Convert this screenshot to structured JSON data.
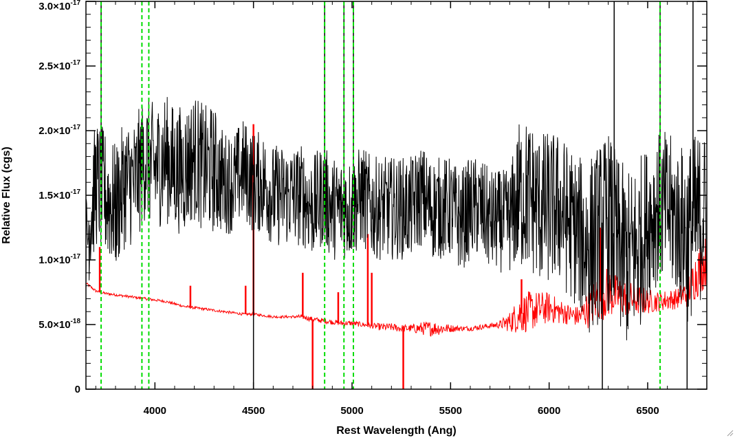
{
  "chart_data": {
    "type": "line",
    "title": "",
    "xlabel": "Rest Wavelength (Ang)",
    "ylabel": "Relative Flux (cgs)",
    "xlim": [
      3650,
      6800
    ],
    "ylim": [
      0,
      3e-17
    ],
    "x_ticks": [
      {
        "value": 4000,
        "label": "4000"
      },
      {
        "value": 4500,
        "label": "4500"
      },
      {
        "value": 5000,
        "label": "5000"
      },
      {
        "value": 5500,
        "label": "5500"
      },
      {
        "value": 6000,
        "label": "6000"
      },
      {
        "value": 6500,
        "label": "6500"
      }
    ],
    "y_ticks": [
      {
        "value": 0,
        "mantissa": "0",
        "exponent": ""
      },
      {
        "value": 5e-18,
        "mantissa": "5.0×10",
        "exponent": "-18"
      },
      {
        "value": 1e-17,
        "mantissa": "1.0×10",
        "exponent": "-17"
      },
      {
        "value": 1.5e-17,
        "mantissa": "1.5×10",
        "exponent": "-17"
      },
      {
        "value": 2e-17,
        "mantissa": "2.0×10",
        "exponent": "-17"
      },
      {
        "value": 2.5e-17,
        "mantissa": "2.5×10",
        "exponent": "-17"
      },
      {
        "value": 3e-17,
        "mantissa": "3.0×10",
        "exponent": "-17"
      }
    ],
    "grid": false,
    "line_markers": [
      3727,
      3934,
      3969,
      4861,
      4959,
      5007,
      6563
    ],
    "series": [
      {
        "color": "#000000",
        "x": [
          3650,
          3700,
          3750,
          3800,
          3850,
          3900,
          3950,
          4000,
          4050,
          4100,
          4150,
          4200,
          4250,
          4300,
          4350,
          4400,
          4450,
          4500,
          4550,
          4600,
          4650,
          4700,
          4750,
          4800,
          4850,
          4900,
          4950,
          5000,
          5050,
          5100,
          5150,
          5200,
          5250,
          5300,
          5350,
          5400,
          5450,
          5500,
          5550,
          5600,
          5650,
          5700,
          5750,
          5800,
          5850,
          5900,
          5950,
          6000,
          6050,
          6100,
          6150,
          6200,
          6250,
          6300,
          6350,
          6400,
          6450,
          6500,
          6550,
          6600,
          6650,
          6700,
          6750,
          6800
        ],
        "y": [
          1.1e-17,
          1.6e-17,
          1.5e-17,
          1.4e-17,
          1.6e-17,
          1.6e-17,
          1.8e-17,
          1.7e-17,
          1.8e-17,
          1.7e-17,
          1.7e-17,
          1.8e-17,
          1.7e-17,
          1.7e-17,
          1.6e-17,
          1.6e-17,
          1.7e-17,
          1.6e-17,
          1.6e-17,
          1.5e-17,
          1.5e-17,
          1.5e-17,
          1.5e-17,
          1.4e-17,
          1.5e-17,
          1.4e-17,
          1.4e-17,
          1.4e-17,
          1.5e-17,
          1.4e-17,
          1.4e-17,
          1.4e-17,
          1.4e-17,
          1.4e-17,
          1.5e-17,
          1.4e-17,
          1.4e-17,
          1.4e-17,
          1.3e-17,
          1.4e-17,
          1.4e-17,
          1.3e-17,
          1.3e-17,
          1.3e-17,
          1.5e-17,
          1.5e-17,
          1.4e-17,
          1.4e-17,
          1.4e-17,
          1.3e-17,
          1.2e-17,
          1.1e-17,
          1.2e-17,
          1.3e-17,
          1.1e-17,
          1e-17,
          1.1e-17,
          1.3e-17,
          1.4e-17,
          1.4e-17,
          1.3e-17,
          1.2e-17,
          1.3e-17,
          1.4e-17
        ],
        "noise": [
          4e-18,
          5e-18,
          5e-18,
          5e-18,
          5e-18,
          5e-18,
          5e-18,
          5e-18,
          5e-18,
          5e-18,
          5e-18,
          5e-18,
          5e-18,
          5e-18,
          4e-18,
          4e-18,
          4e-18,
          4e-18,
          4e-18,
          4e-18,
          4e-18,
          4e-18,
          4e-18,
          4e-18,
          4e-18,
          4e-18,
          4e-18,
          4e-18,
          4e-18,
          4e-18,
          4e-18,
          4e-18,
          4e-18,
          4e-18,
          4e-18,
          4e-18,
          4e-18,
          4e-18,
          4e-18,
          4e-18,
          4e-18,
          4e-18,
          4e-18,
          4e-18,
          6e-18,
          6e-18,
          6e-18,
          6e-18,
          6e-18,
          6e-18,
          6e-18,
          7e-18,
          7e-18,
          7e-18,
          7e-18,
          7e-18,
          7e-18,
          6e-18,
          6e-18,
          6e-18,
          6e-18,
          7e-18,
          7e-18,
          6e-18
        ],
        "spikes": [
          {
            "x": 3727,
            "y": 3e-17
          },
          {
            "x": 4500,
            "y": 0
          },
          {
            "x": 4861,
            "y": 3e-17
          },
          {
            "x": 4959,
            "y": 3e-17
          },
          {
            "x": 5007,
            "y": 3e-17
          },
          {
            "x": 6270,
            "y": 0
          },
          {
            "x": 6330,
            "y": 3e-17
          },
          {
            "x": 6563,
            "y": 3e-17
          },
          {
            "x": 6700,
            "y": 0
          },
          {
            "x": 6730,
            "y": 3e-17
          }
        ]
      },
      {
        "color": "#ff0000",
        "x": [
          3650,
          3700,
          3750,
          3800,
          3850,
          3900,
          3950,
          4000,
          4050,
          4100,
          4150,
          4200,
          4250,
          4300,
          4350,
          4400,
          4450,
          4500,
          4550,
          4600,
          4650,
          4700,
          4750,
          4800,
          4850,
          4900,
          4950,
          5000,
          5050,
          5100,
          5150,
          5200,
          5250,
          5300,
          5350,
          5400,
          5450,
          5500,
          5550,
          5600,
          5650,
          5700,
          5750,
          5800,
          5850,
          5900,
          5950,
          6000,
          6050,
          6100,
          6150,
          6200,
          6250,
          6300,
          6350,
          6400,
          6450,
          6500,
          6550,
          6600,
          6650,
          6700,
          6750,
          6800
        ],
        "y": [
          8.2e-18,
          7.6e-18,
          7.4e-18,
          7.3e-18,
          7.2e-18,
          7.1e-18,
          7e-18,
          6.9e-18,
          6.8e-18,
          6.6e-18,
          6.4e-18,
          6.3e-18,
          6.2e-18,
          6.1e-18,
          6e-18,
          5.9e-18,
          5.8e-18,
          5.8e-18,
          5.7e-18,
          5.6e-18,
          5.6e-18,
          5.6e-18,
          5.6e-18,
          5.4e-18,
          5.3e-18,
          5.2e-18,
          5.1e-18,
          5.1e-18,
          5e-18,
          4.9e-18,
          4.8e-18,
          4.8e-18,
          4.7e-18,
          4.7e-18,
          4.7e-18,
          4.7e-18,
          4.7e-18,
          4.7e-18,
          4.7e-18,
          4.7e-18,
          4.8e-18,
          4.9e-18,
          5e-18,
          5.2e-18,
          5.8e-18,
          6e-18,
          6.2e-18,
          6.3e-18,
          6e-18,
          5.8e-18,
          5.6e-18,
          6.2e-18,
          7.2e-18,
          7.5e-18,
          7.2e-18,
          7e-18,
          6.9e-18,
          6.8e-18,
          6.8e-18,
          6.9e-18,
          7e-18,
          7.5e-18,
          9e-18,
          1e-17
        ],
        "noise": [
          1e-19,
          1e-19,
          1e-19,
          1e-19,
          1e-19,
          1e-19,
          1e-19,
          1e-19,
          1e-19,
          1e-19,
          1e-19,
          1e-19,
          1e-19,
          1e-19,
          1e-19,
          1e-19,
          1e-19,
          1e-19,
          1e-19,
          1e-19,
          1e-19,
          1e-19,
          2e-19,
          2e-19,
          2e-19,
          2e-19,
          2e-19,
          2e-19,
          2e-19,
          2e-19,
          3e-19,
          3e-19,
          3e-19,
          3e-19,
          5e-19,
          6e-19,
          5e-19,
          3e-19,
          2e-19,
          2e-19,
          2e-19,
          2e-19,
          3e-19,
          8e-19,
          1.5e-18,
          1.6e-18,
          1.4e-18,
          1.2e-18,
          1e-18,
          8e-19,
          8e-19,
          1.5e-18,
          2e-18,
          2e-18,
          1.6e-18,
          1.4e-18,
          1.2e-18,
          1e-18,
          8e-19,
          8e-19,
          8e-19,
          1.2e-18,
          2e-18,
          2e-18
        ],
        "spikes": [
          {
            "x": 3720,
            "y": 1.1e-17
          },
          {
            "x": 4180,
            "y": 8e-18
          },
          {
            "x": 4460,
            "y": 8e-18
          },
          {
            "x": 4500,
            "y": 2.05e-17
          },
          {
            "x": 4750,
            "y": 9e-18
          },
          {
            "x": 4800,
            "y": 0
          },
          {
            "x": 4930,
            "y": 7.5e-18
          },
          {
            "x": 5080,
            "y": 1.2e-17
          },
          {
            "x": 5100,
            "y": 9e-18
          },
          {
            "x": 5260,
            "y": 0
          },
          {
            "x": 5860,
            "y": 8.5e-18
          },
          {
            "x": 6260,
            "y": 1.25e-17
          }
        ]
      }
    ]
  }
}
